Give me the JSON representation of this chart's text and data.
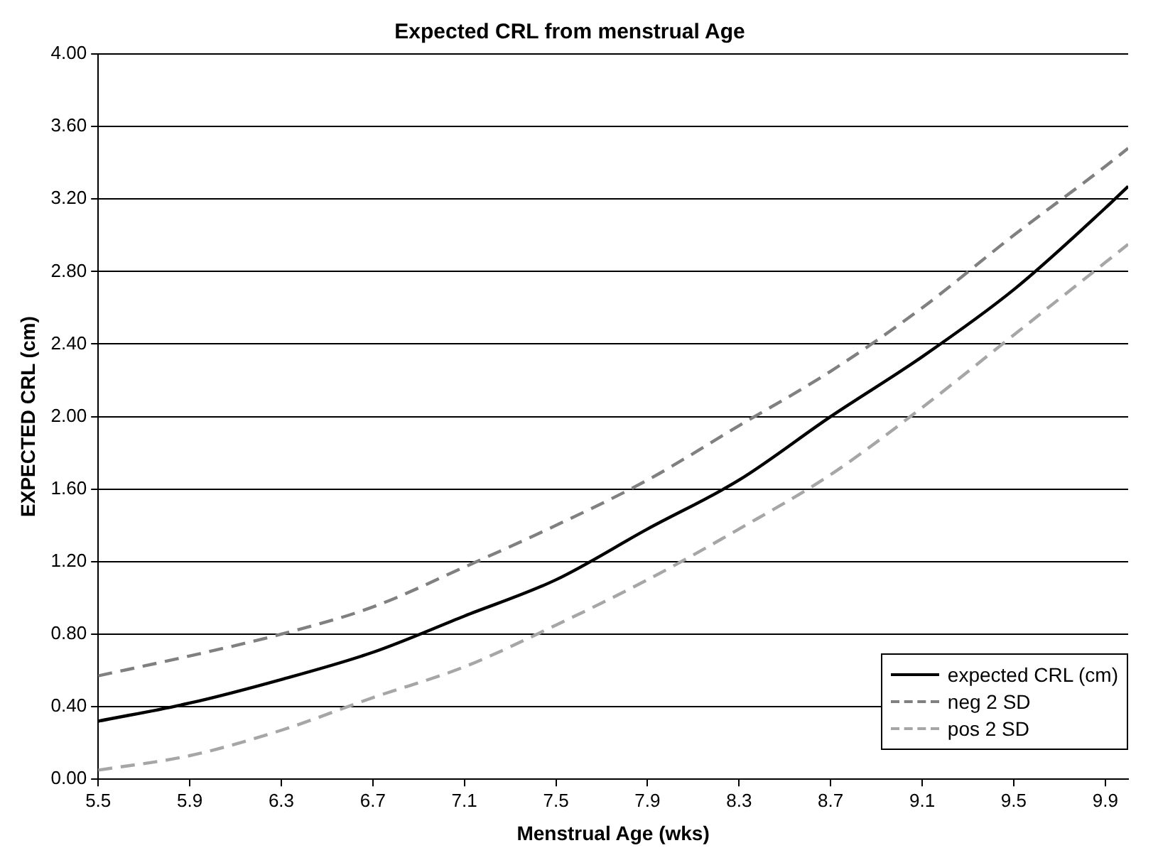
{
  "chart_data": {
    "type": "line",
    "title": "Expected CRL from menstrual Age",
    "xlabel": "Menstrual Age (wks)",
    "ylabel": "EXPECTED CRL (cm)",
    "x": [
      5.5,
      5.9,
      6.3,
      6.7,
      7.1,
      7.5,
      7.9,
      8.3,
      8.7,
      9.1,
      9.5,
      9.9,
      10.0
    ],
    "series": [
      {
        "name": "expected CRL (cm)",
        "color": "#000000",
        "line_style": "solid",
        "values": [
          0.32,
          0.42,
          0.55,
          0.7,
          0.9,
          1.1,
          1.38,
          1.65,
          2.0,
          2.33,
          2.7,
          3.15,
          3.27
        ]
      },
      {
        "name": "neg 2 SD",
        "color": "#808080",
        "line_style": "dashed",
        "values": [
          0.57,
          0.68,
          0.8,
          0.95,
          1.17,
          1.4,
          1.65,
          1.95,
          2.25,
          2.6,
          3.0,
          3.38,
          3.48
        ]
      },
      {
        "name": "pos 2 SD",
        "color": "#a6a6a6",
        "line_style": "dashed",
        "values": [
          0.05,
          0.13,
          0.27,
          0.45,
          0.62,
          0.85,
          1.1,
          1.38,
          1.68,
          2.05,
          2.45,
          2.85,
          2.95
        ]
      }
    ],
    "xlim": [
      5.5,
      10.0
    ],
    "xticks": [
      {
        "value": 5.5,
        "label": "5.5"
      },
      {
        "value": 5.9,
        "label": "5.9"
      },
      {
        "value": 6.3,
        "label": "6.3"
      },
      {
        "value": 6.7,
        "label": "6.7"
      },
      {
        "value": 7.1,
        "label": "7.1"
      },
      {
        "value": 7.5,
        "label": "7.5"
      },
      {
        "value": 7.9,
        "label": "7.9"
      },
      {
        "value": 8.3,
        "label": "8.3"
      },
      {
        "value": 8.7,
        "label": "8.7"
      },
      {
        "value": 9.1,
        "label": "9.1"
      },
      {
        "value": 9.5,
        "label": "9.5"
      },
      {
        "value": 9.9,
        "label": "9.9"
      }
    ],
    "ylim": [
      0,
      4
    ],
    "yticks": [
      {
        "value": 0,
        "label": "0.00"
      },
      {
        "value": 0.4,
        "label": "0.40"
      },
      {
        "value": 0.8,
        "label": "0.80"
      },
      {
        "value": 1.2,
        "label": "1.20"
      },
      {
        "value": 1.6,
        "label": "1.60"
      },
      {
        "value": 2.0,
        "label": "2.00"
      },
      {
        "value": 2.4,
        "label": "2.40"
      },
      {
        "value": 2.8,
        "label": "2.80"
      },
      {
        "value": 3.2,
        "label": "3.20"
      },
      {
        "value": 3.6,
        "label": "3.60"
      },
      {
        "value": 4.0,
        "label": "4.00"
      }
    ],
    "grid": "y",
    "legend": "bottom right",
    "marker": "none"
  }
}
